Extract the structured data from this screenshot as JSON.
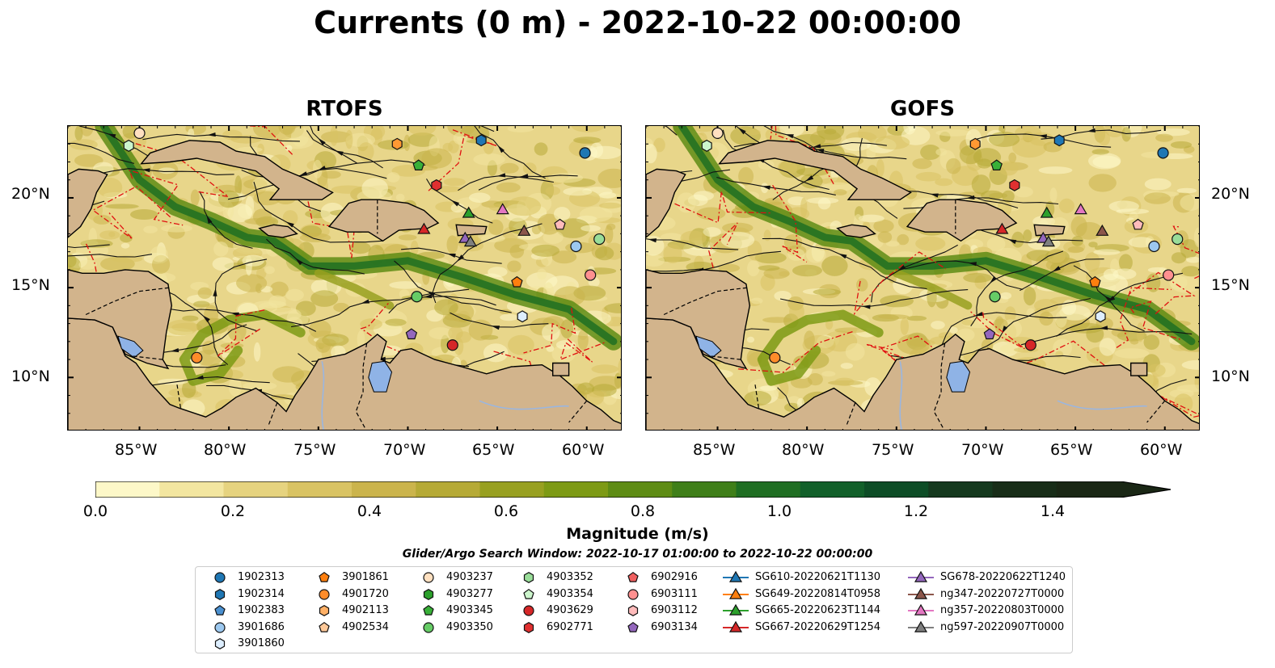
{
  "title": "Currents (0 m) - 2022-10-22 00:00:00",
  "maps": [
    {
      "id": "rtofs",
      "title": "RTOFS"
    },
    {
      "id": "gofs",
      "title": "GOFS"
    }
  ],
  "map_extent": {
    "lon_min": -89,
    "lon_max": -58,
    "lat_min": 7,
    "lat_max": 24
  },
  "lat_ticks": [
    "20°N",
    "15°N",
    "10°N"
  ],
  "lon_ticks": [
    "85°W",
    "80°W",
    "75°W",
    "70°W",
    "65°W",
    "60°W"
  ],
  "colorbar": {
    "label": "Magnitude (m/s)",
    "ticks": [
      "0.0",
      "0.2",
      "0.4",
      "0.6",
      "0.8",
      "1.0",
      "1.2",
      "1.4"
    ],
    "min": 0.0,
    "max": 1.5,
    "extend": "max",
    "colors": [
      "#fdf8c8",
      "#f3e6a0",
      "#e6d37f",
      "#d9c363",
      "#cbb44c",
      "#b6aa36",
      "#98a020",
      "#7d9a14",
      "#5e8c14",
      "#3f7f19",
      "#1f6e22",
      "#12602a",
      "#0d4d26",
      "#15391e",
      "#182d18",
      "#1a2715"
    ]
  },
  "search_window": "Glider/Argo Search Window: 2022-10-17 01:00:00 to 2022-10-22 00:00:00",
  "legend": [
    {
      "label": "1902313",
      "marker": "circle",
      "color": "#1f77b4"
    },
    {
      "label": "1902314",
      "marker": "hexagon",
      "color": "#1f77b4"
    },
    {
      "label": "1902383",
      "marker": "pentagon",
      "color": "#4a90d0"
    },
    {
      "label": "3901686",
      "marker": "circle",
      "color": "#9cc8ef"
    },
    {
      "label": "3901860",
      "marker": "hexagon",
      "color": "#ddeeff"
    },
    {
      "label": "3901861",
      "marker": "pentagon",
      "color": "#ff7f0e"
    },
    {
      "label": "4901720",
      "marker": "circle",
      "color": "#ff8c2a"
    },
    {
      "label": "4902113",
      "marker": "hexagon",
      "color": "#ffb066"
    },
    {
      "label": "4902534",
      "marker": "pentagon",
      "color": "#ffc999"
    },
    {
      "label": "4903237",
      "marker": "circle",
      "color": "#ffe0c0"
    },
    {
      "label": "4903277",
      "marker": "hexagon",
      "color": "#2ca02c"
    },
    {
      "label": "4903345",
      "marker": "pentagon",
      "color": "#38b038"
    },
    {
      "label": "4903350",
      "marker": "circle",
      "color": "#66cc66"
    },
    {
      "label": "4903352",
      "marker": "hexagon",
      "color": "#99dd99"
    },
    {
      "label": "4903354",
      "marker": "pentagon",
      "color": "#ccf5cc"
    },
    {
      "label": "4903629",
      "marker": "circle",
      "color": "#d62728"
    },
    {
      "label": "6902771",
      "marker": "hexagon",
      "color": "#e03030"
    },
    {
      "label": "6902916",
      "marker": "pentagon",
      "color": "#f06060"
    },
    {
      "label": "6903111",
      "marker": "circle",
      "color": "#ff9090"
    },
    {
      "label": "6903112",
      "marker": "hexagon",
      "color": "#ffbbbb"
    },
    {
      "label": "6903134",
      "marker": "pentagon",
      "color": "#9467bd"
    },
    {
      "label": "SG610-20220621T1130",
      "marker": "triangle-line",
      "color": "#1f77b4"
    },
    {
      "label": "SG649-20220814T0958",
      "marker": "triangle-line",
      "color": "#ff7f0e"
    },
    {
      "label": "SG665-20220623T1144",
      "marker": "triangle-line",
      "color": "#2ca02c"
    },
    {
      "label": "SG667-20220629T1254",
      "marker": "triangle-line",
      "color": "#d62728"
    },
    {
      "label": "SG678-20220622T1240",
      "marker": "triangle-line",
      "color": "#9467bd"
    },
    {
      "label": "ng347-20220727T0000",
      "marker": "triangle-line",
      "color": "#8c564b"
    },
    {
      "label": "ng357-20220803T0000",
      "marker": "triangle-line",
      "color": "#e377c2"
    },
    {
      "label": "ng597-20220907T0000",
      "marker": "triangle-line",
      "color": "#7f7f7f"
    }
  ],
  "platforms": [
    {
      "lon": -85.0,
      "lat": 23.6,
      "marker": "circle",
      "color": "#ffe0c0"
    },
    {
      "lon": -85.6,
      "lat": 22.9,
      "marker": "hexagon",
      "color": "#ccf5cc"
    },
    {
      "lon": -70.6,
      "lat": 23.0,
      "marker": "hexagon",
      "color": "#ff9933"
    },
    {
      "lon": -65.9,
      "lat": 23.2,
      "marker": "hexagon",
      "color": "#1f77b4"
    },
    {
      "lon": -60.1,
      "lat": 22.5,
      "marker": "circle",
      "color": "#1f77b4"
    },
    {
      "lon": -69.4,
      "lat": 21.8,
      "marker": "pentagon",
      "color": "#38b038"
    },
    {
      "lon": -68.4,
      "lat": 20.7,
      "marker": "hexagon",
      "color": "#e03030"
    },
    {
      "lon": -66.6,
      "lat": 19.1,
      "marker": "triangle",
      "color": "#2ca02c"
    },
    {
      "lon": -64.7,
      "lat": 19.3,
      "marker": "triangle",
      "color": "#e377c2"
    },
    {
      "lon": -69.1,
      "lat": 18.2,
      "marker": "triangle",
      "color": "#d62728"
    },
    {
      "lon": -66.8,
      "lat": 17.7,
      "marker": "triangle",
      "color": "#9467bd"
    },
    {
      "lon": -66.5,
      "lat": 17.5,
      "marker": "triangle",
      "color": "#7f7f7f"
    },
    {
      "lon": -63.5,
      "lat": 18.1,
      "marker": "triangle",
      "color": "#8c564b"
    },
    {
      "lon": -61.5,
      "lat": 18.5,
      "marker": "pentagon",
      "color": "#ffbbbb"
    },
    {
      "lon": -60.6,
      "lat": 17.3,
      "marker": "circle",
      "color": "#9cc8ef"
    },
    {
      "lon": -59.3,
      "lat": 17.7,
      "marker": "circle",
      "color": "#99dd99"
    },
    {
      "lon": -59.8,
      "lat": 15.7,
      "marker": "circle",
      "color": "#ff9090"
    },
    {
      "lon": -63.9,
      "lat": 15.3,
      "marker": "pentagon",
      "color": "#ff7f0e"
    },
    {
      "lon": -69.5,
      "lat": 14.5,
      "marker": "circle",
      "color": "#66cc66"
    },
    {
      "lon": -63.6,
      "lat": 13.4,
      "marker": "hexagon",
      "color": "#ddeeff"
    },
    {
      "lon": -69.8,
      "lat": 12.4,
      "marker": "pentagon",
      "color": "#9467bd"
    },
    {
      "lon": -67.5,
      "lat": 11.8,
      "marker": "circle",
      "color": "#d62728"
    },
    {
      "lon": -81.8,
      "lat": 11.1,
      "marker": "circle",
      "color": "#ff8c2a"
    }
  ]
}
